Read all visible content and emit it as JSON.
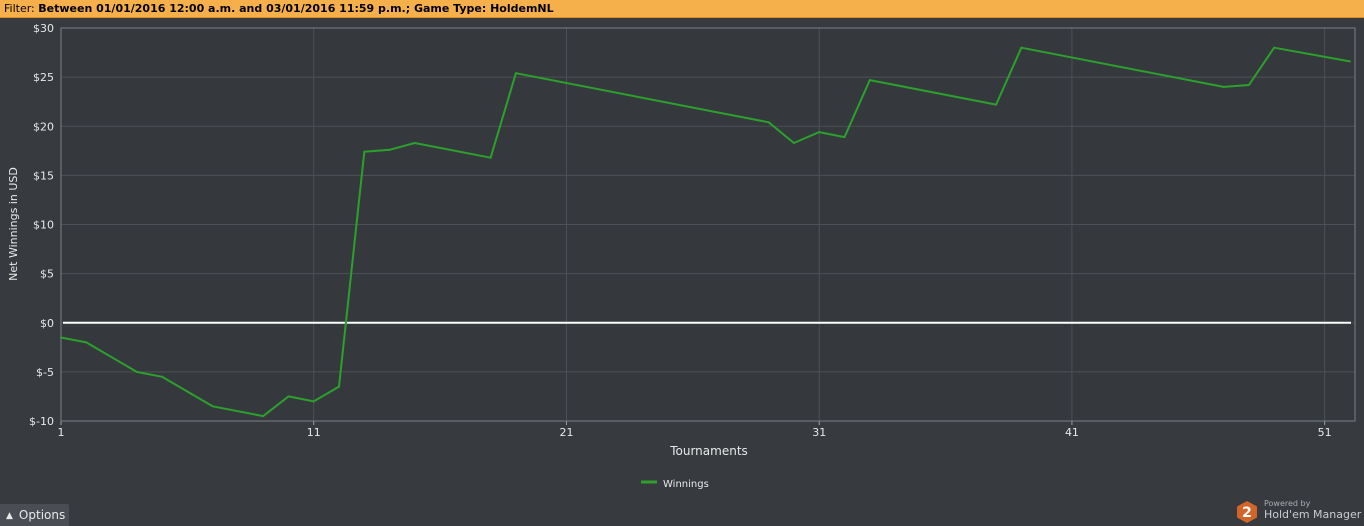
{
  "filter": {
    "label": "Filter:",
    "value": "Between 01/01/2016 12:00 a.m. and 03/01/2016 11:59 p.m.; Game Type: HoldemNL"
  },
  "options": {
    "label": "Options",
    "icon": "caret-up-icon"
  },
  "brand": {
    "powered_by": "Powered by",
    "name": "Hold'em Manager",
    "logo_digit": "2"
  },
  "colors": {
    "background": "#373b40",
    "plot_background": "#35393d",
    "grid": "#4d5157",
    "series": "#2ca02c",
    "zero_line": "#ffffff",
    "filter_bar": "#f6b04b"
  },
  "chart_data": {
    "type": "line",
    "title": "",
    "xlabel": "Tournaments",
    "ylabel": "Net Winnings in USD",
    "xlim": [
      1,
      52.2
    ],
    "ylim": [
      -10,
      30
    ],
    "x_ticks": [
      1,
      11,
      21,
      31,
      41,
      51
    ],
    "y_ticks": [
      {
        "value": 30,
        "label": "$30"
      },
      {
        "value": 25,
        "label": "$25"
      },
      {
        "value": 20,
        "label": "$20"
      },
      {
        "value": 15,
        "label": "$15"
      },
      {
        "value": 10,
        "label": "$10"
      },
      {
        "value": 5,
        "label": "$5"
      },
      {
        "value": 0,
        "label": "$0"
      },
      {
        "value": -5,
        "label": "$-5"
      },
      {
        "value": -10,
        "label": "$-10"
      }
    ],
    "grid": true,
    "zero_line": true,
    "legend_position": "bottom-center",
    "series": [
      {
        "name": "Winnings",
        "x": [
          1,
          2,
          4,
          5,
          7,
          9,
          10,
          11,
          12,
          13,
          14,
          15,
          18,
          19,
          29,
          30,
          31,
          32,
          33,
          38,
          39,
          47,
          48,
          49,
          52
        ],
        "y": [
          -1.5,
          -2.0,
          -5.0,
          -5.5,
          -8.5,
          -9.5,
          -7.5,
          -8.0,
          -6.5,
          17.4,
          17.6,
          18.3,
          16.8,
          25.4,
          20.4,
          18.3,
          19.4,
          18.9,
          24.7,
          22.2,
          28.0,
          24.0,
          24.2,
          28.0,
          26.6
        ]
      }
    ]
  }
}
